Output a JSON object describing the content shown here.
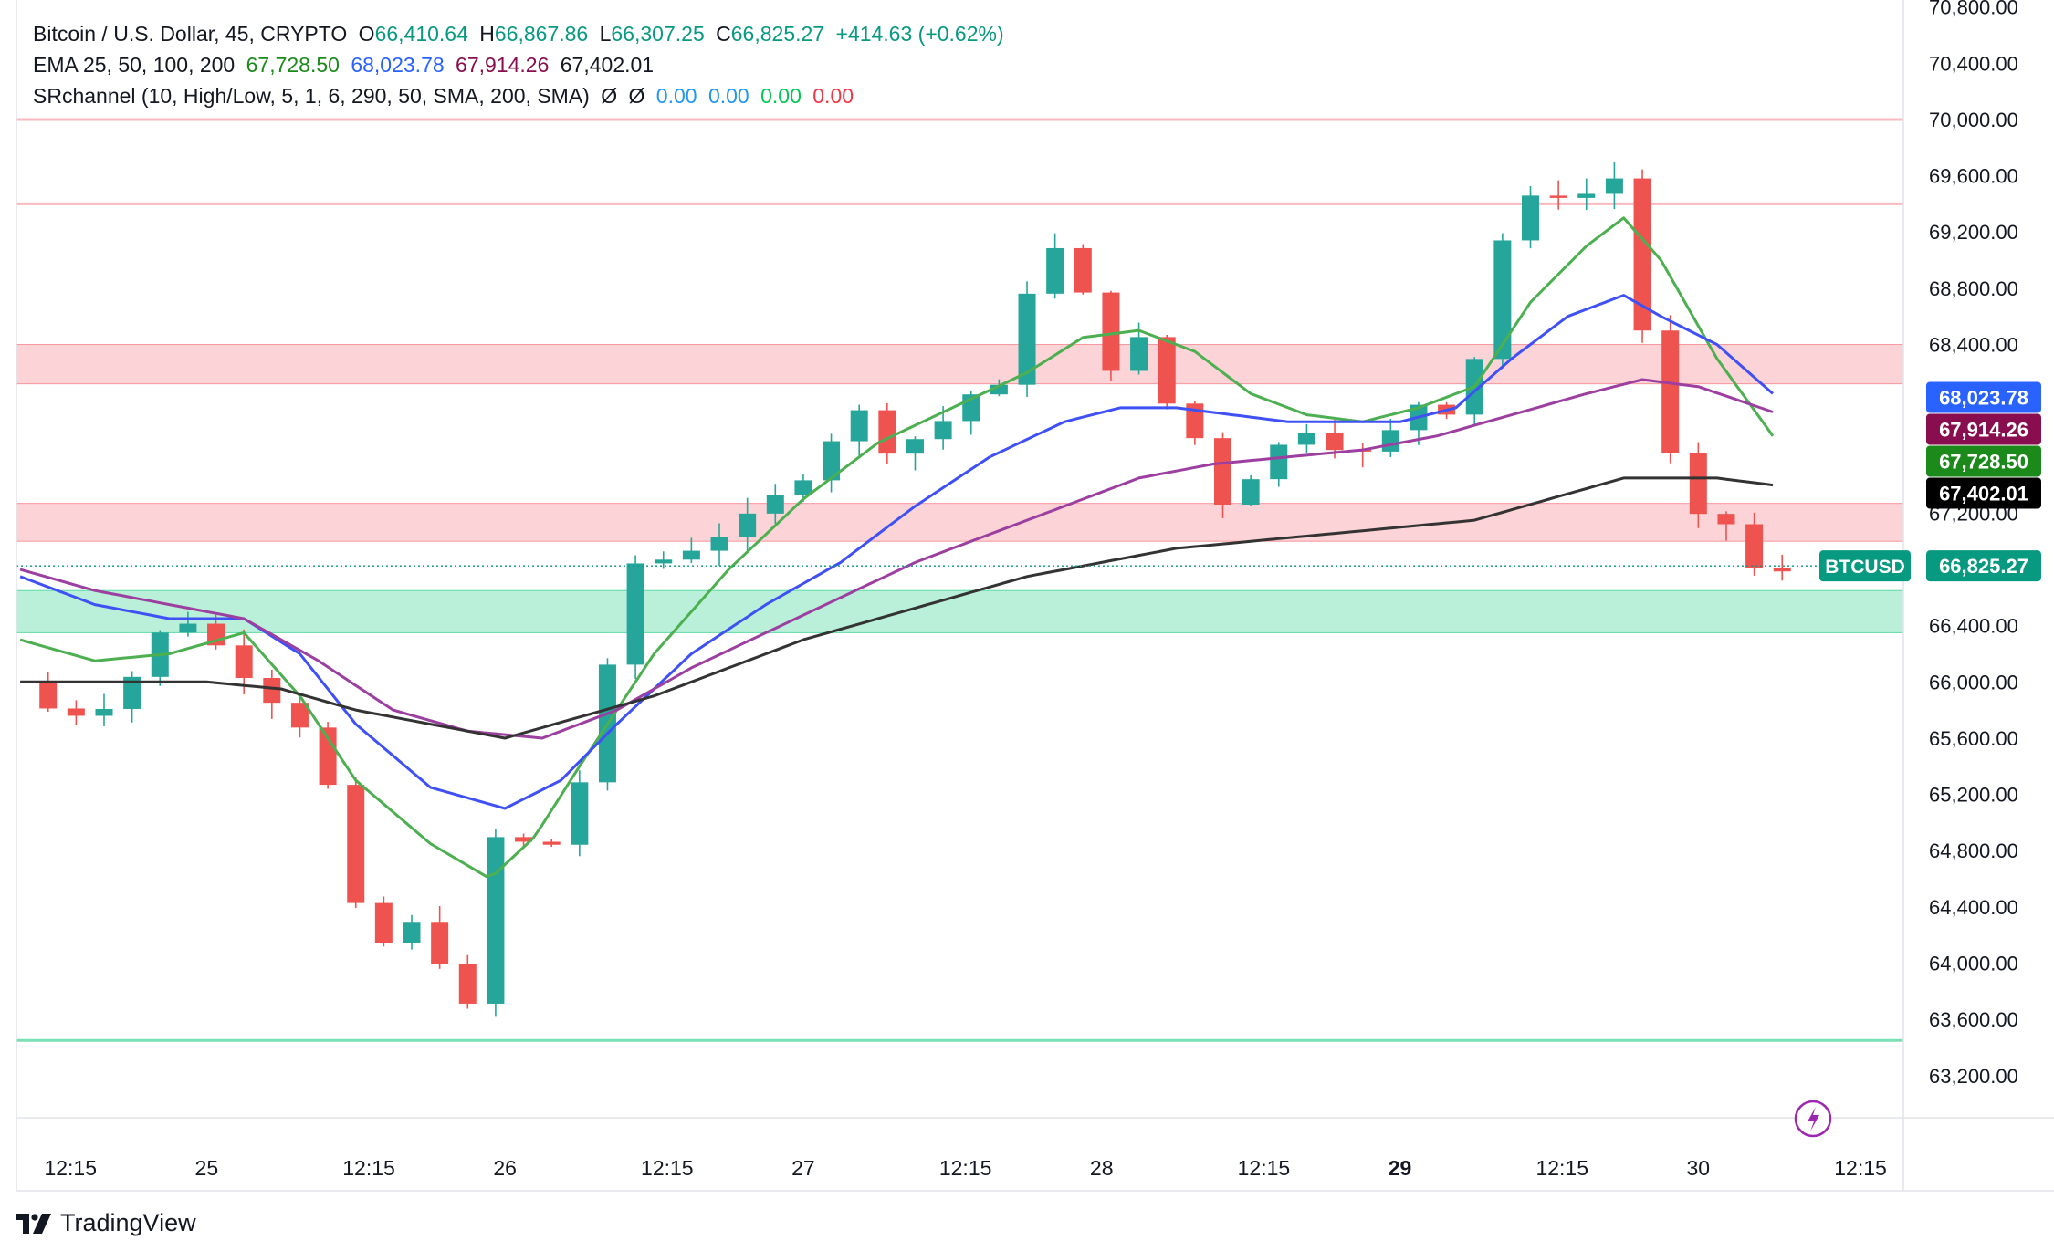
{
  "header": {
    "symbol": "Bitcoin / U.S. Dollar, 45, CRYPTO",
    "ohlc": {
      "o_label": "O",
      "o": "66,410.64",
      "h_label": "H",
      "h": "66,867.86",
      "l_label": "L",
      "l": "66,307.25",
      "c_label": "C",
      "c": "66,825.27",
      "change": "+414.63 (+0.62%)"
    },
    "ema_label": "EMA 25, 50, 100, 200",
    "ema_values": [
      "67,728.50",
      "68,023.78",
      "67,914.26",
      "67,402.01"
    ],
    "sr_label": "SRchannel (10, High/Low, 5, 1, 6, 290, 50, SMA, 200, SMA)",
    "sr_na": [
      "Ø",
      "Ø"
    ],
    "sr_values": [
      "0.00",
      "0.00",
      "0.00",
      "0.00"
    ]
  },
  "colors": {
    "up": "#089981",
    "down": "#f23645",
    "up_fill": "#26a69a",
    "down_fill": "#ef5350",
    "ema25": "#4caf50",
    "ema50": "#3f51f5",
    "ema100": "#9c3fa0",
    "ema200": "#333333",
    "sr_values": [
      "#2196f3",
      "#2196f3",
      "#00c853",
      "#f23645"
    ]
  },
  "brand": "TradingView",
  "chart_data": {
    "type": "candlestick",
    "symbol": "BTCUSD",
    "y_ticks": [
      "70,800.00",
      "70,400.00",
      "70,000.00",
      "69,600.00",
      "69,200.00",
      "68,800.00",
      "68,400.00",
      "68,000.00",
      "67,600.00",
      "67,200.00",
      "66,800.00",
      "66,400.00",
      "66,000.00",
      "65,600.00",
      "65,200.00",
      "64,800.00",
      "64,400.00",
      "64,000.00",
      "63,600.00",
      "63,200.00"
    ],
    "y_tick_values": [
      70800,
      70400,
      70000,
      69600,
      69200,
      68800,
      68400,
      68000,
      67600,
      67200,
      66800,
      66400,
      66000,
      65600,
      65200,
      64800,
      64400,
      64000,
      63600,
      63200
    ],
    "ylim": [
      62900,
      70850
    ],
    "x_ticks": [
      {
        "label": "12:15",
        "t": 0.35,
        "bold": false
      },
      {
        "label": "25",
        "t": 4.0,
        "bold": false
      },
      {
        "label": "12:15",
        "t": 8.35,
        "bold": false
      },
      {
        "label": "26",
        "t": 12.0,
        "bold": false
      },
      {
        "label": "12:15",
        "t": 16.35,
        "bold": false
      },
      {
        "label": "27",
        "t": 20.0,
        "bold": false
      },
      {
        "label": "12:15",
        "t": 24.35,
        "bold": false
      },
      {
        "label": "28",
        "t": 28.0,
        "bold": false
      },
      {
        "label": "12:15",
        "t": 32.35,
        "bold": false
      },
      {
        "label": "29",
        "t": 36.0,
        "bold": true
      },
      {
        "label": "12:15",
        "t": 40.35,
        "bold": false
      },
      {
        "label": "30",
        "t": 44.0,
        "bold": false
      },
      {
        "label": "12:15",
        "t": 48.35,
        "bold": false
      }
    ],
    "x_unit": "hours from 24 00:00",
    "candle_hours": 0.75,
    "key_points": [
      [
        -1.0,
        66000
      ],
      [
        0.0,
        65750
      ],
      [
        1.5,
        65900
      ],
      [
        2.5,
        66200
      ],
      [
        3.2,
        66550
      ],
      [
        4.0,
        66300
      ],
      [
        5.0,
        66100
      ],
      [
        6.2,
        65800
      ],
      [
        7.0,
        65600
      ],
      [
        7.8,
        64450
      ],
      [
        8.5,
        64100
      ],
      [
        9.5,
        64250
      ],
      [
        10.3,
        64050
      ],
      [
        11.0,
        63650
      ],
      [
        11.6,
        64850
      ],
      [
        12.1,
        64950
      ],
      [
        13.0,
        64700
      ],
      [
        14.0,
        65300
      ],
      [
        14.8,
        66100
      ],
      [
        15.6,
        66950
      ],
      [
        16.5,
        66850
      ],
      [
        17.3,
        67050
      ],
      [
        18.4,
        67100
      ],
      [
        19.3,
        67300
      ],
      [
        20.3,
        67600
      ],
      [
        21.3,
        67950
      ],
      [
        22.2,
        67700
      ],
      [
        23.3,
        67750
      ],
      [
        24.5,
        68050
      ],
      [
        25.4,
        68050
      ],
      [
        26.3,
        69200
      ],
      [
        27.1,
        68950
      ],
      [
        27.7,
        68600
      ],
      [
        28.3,
        68250
      ],
      [
        28.8,
        68600
      ],
      [
        29.4,
        68000
      ],
      [
        30.3,
        67950
      ],
      [
        31.0,
        67200
      ],
      [
        31.6,
        67450
      ],
      [
        32.4,
        67550
      ],
      [
        33.0,
        67750
      ],
      [
        33.6,
        67850
      ],
      [
        34.4,
        67700
      ],
      [
        35.0,
        67600
      ],
      [
        35.6,
        67700
      ],
      [
        36.4,
        68000
      ],
      [
        37.2,
        67950
      ],
      [
        37.9,
        68200
      ],
      [
        38.6,
        69100
      ],
      [
        39.2,
        69300
      ],
      [
        40.0,
        69550
      ],
      [
        40.8,
        69400
      ],
      [
        41.5,
        69650
      ],
      [
        41.9,
        69550
      ],
      [
        42.2,
        69000
      ],
      [
        42.6,
        68350
      ],
      [
        43.1,
        67850
      ],
      [
        43.6,
        66950
      ],
      [
        44.2,
        67200
      ],
      [
        45.0,
        67100
      ],
      [
        45.5,
        66800
      ],
      [
        46.0,
        66350
      ],
      [
        46.3,
        66825
      ]
    ],
    "series": [
      {
        "name": "EMA 25",
        "value_last": 67728.5,
        "points": [
          [
            -1,
            66300
          ],
          [
            1,
            66150
          ],
          [
            3,
            66200
          ],
          [
            5,
            66350
          ],
          [
            6.5,
            65900
          ],
          [
            8,
            65300
          ],
          [
            10,
            64850
          ],
          [
            11.6,
            64600
          ],
          [
            12.8,
            64900
          ],
          [
            14,
            65400
          ],
          [
            16,
            66200
          ],
          [
            18,
            66800
          ],
          [
            20,
            67300
          ],
          [
            22,
            67700
          ],
          [
            24,
            67950
          ],
          [
            26,
            68200
          ],
          [
            27.5,
            68450
          ],
          [
            29,
            68500
          ],
          [
            30.5,
            68350
          ],
          [
            32,
            68050
          ],
          [
            33.5,
            67900
          ],
          [
            35,
            67850
          ],
          [
            36.5,
            67950
          ],
          [
            38,
            68100
          ],
          [
            39.5,
            68700
          ],
          [
            41,
            69100
          ],
          [
            42,
            69300
          ],
          [
            43,
            69000
          ],
          [
            44.5,
            68300
          ],
          [
            46,
            67750
          ]
        ]
      },
      {
        "name": "EMA 50",
        "value_last": 68023.78,
        "points": [
          [
            -1,
            66750
          ],
          [
            1,
            66550
          ],
          [
            3,
            66450
          ],
          [
            5,
            66450
          ],
          [
            6.5,
            66200
          ],
          [
            8,
            65700
          ],
          [
            10,
            65250
          ],
          [
            12,
            65100
          ],
          [
            13.5,
            65300
          ],
          [
            15,
            65700
          ],
          [
            17,
            66200
          ],
          [
            19,
            66550
          ],
          [
            21,
            66850
          ],
          [
            23,
            67250
          ],
          [
            25,
            67600
          ],
          [
            27,
            67850
          ],
          [
            28.5,
            67950
          ],
          [
            30,
            67950
          ],
          [
            31.5,
            67900
          ],
          [
            33,
            67850
          ],
          [
            34.5,
            67850
          ],
          [
            36,
            67850
          ],
          [
            37.5,
            67950
          ],
          [
            39,
            68300
          ],
          [
            40.5,
            68600
          ],
          [
            42,
            68750
          ],
          [
            43,
            68600
          ],
          [
            44.5,
            68400
          ],
          [
            46,
            68050
          ]
        ]
      },
      {
        "name": "EMA 100",
        "value_last": 67914.26,
        "points": [
          [
            -1,
            66800
          ],
          [
            1,
            66650
          ],
          [
            3,
            66550
          ],
          [
            5,
            66450
          ],
          [
            7,
            66150
          ],
          [
            9,
            65800
          ],
          [
            11,
            65650
          ],
          [
            13,
            65600
          ],
          [
            15,
            65800
          ],
          [
            17,
            66100
          ],
          [
            19,
            66350
          ],
          [
            21,
            66600
          ],
          [
            23,
            66850
          ],
          [
            25,
            67050
          ],
          [
            27,
            67250
          ],
          [
            29,
            67450
          ],
          [
            31,
            67550
          ],
          [
            33,
            67600
          ],
          [
            35,
            67650
          ],
          [
            37,
            67750
          ],
          [
            39,
            67900
          ],
          [
            41,
            68050
          ],
          [
            42.5,
            68150
          ],
          [
            44,
            68100
          ],
          [
            46,
            67920
          ]
        ]
      },
      {
        "name": "EMA 200",
        "value_last": 67402.01,
        "points": [
          [
            -1,
            66000
          ],
          [
            2,
            66000
          ],
          [
            4,
            66000
          ],
          [
            6,
            65950
          ],
          [
            8,
            65800
          ],
          [
            10,
            65700
          ],
          [
            12,
            65600
          ],
          [
            14,
            65750
          ],
          [
            16,
            65900
          ],
          [
            18,
            66100
          ],
          [
            20,
            66300
          ],
          [
            22,
            66450
          ],
          [
            24,
            66600
          ],
          [
            26,
            66750
          ],
          [
            28,
            66850
          ],
          [
            30,
            66950
          ],
          [
            32,
            67000
          ],
          [
            34,
            67050
          ],
          [
            36,
            67100
          ],
          [
            38,
            67150
          ],
          [
            40,
            67300
          ],
          [
            42,
            67450
          ],
          [
            43,
            67450
          ],
          [
            44.5,
            67450
          ],
          [
            46,
            67400
          ]
        ]
      }
    ],
    "sr_zones": [
      {
        "from": 68120,
        "to": 68400,
        "kind": "resistance"
      },
      {
        "from": 67000,
        "to": 67270,
        "kind": "resistance"
      },
      {
        "from": 66350,
        "to": 66650,
        "kind": "support"
      }
    ],
    "sr_lines": [
      {
        "value": 70000,
        "kind": "resistance"
      },
      {
        "value": 69400,
        "kind": "resistance"
      },
      {
        "value": 63450,
        "kind": "support"
      }
    ],
    "last_price": 66825.27,
    "price_tags": [
      {
        "label": "68,023.78",
        "value": 68023.78,
        "color": "#2962ff"
      },
      {
        "label": "67,914.26",
        "value": 67914.26,
        "color": "#880e4f"
      },
      {
        "label": "67,728.50",
        "value": 67728.5,
        "color": "#1b8a1b"
      },
      {
        "label": "67,402.01",
        "value": 67402.01,
        "color": "#000000"
      },
      {
        "label": "66,825.27",
        "value": 66825.27,
        "color": "#089981"
      }
    ],
    "symbol_tag": "BTCUSD"
  }
}
